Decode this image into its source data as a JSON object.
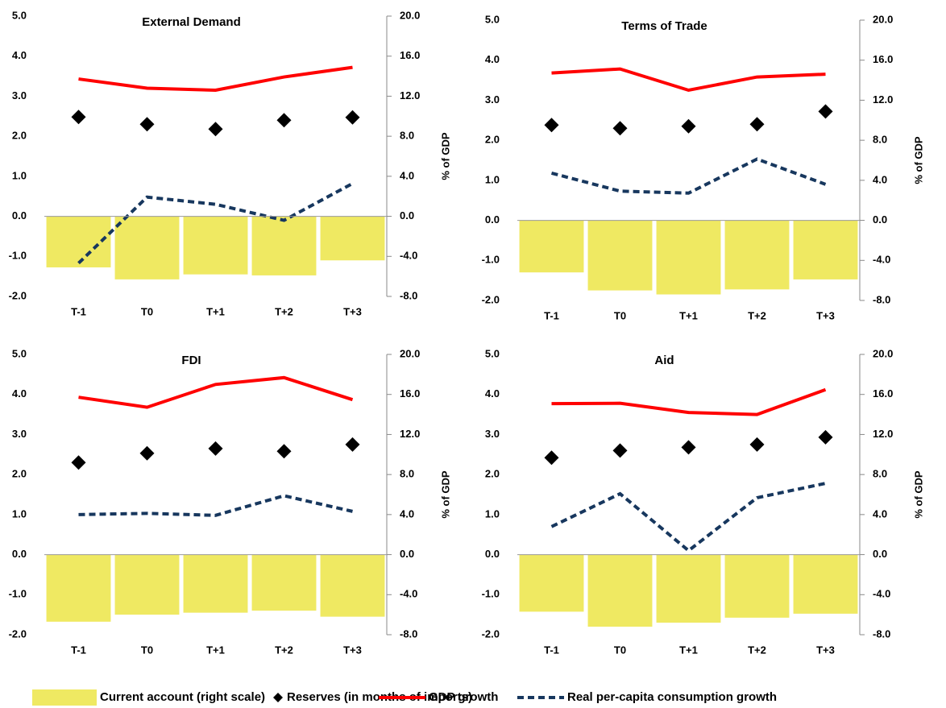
{
  "chart_data": [
    {
      "type": "combo",
      "title": "External Demand",
      "y2label": "% of GDP",
      "categories": [
        "T-1",
        "T0",
        "T+1",
        "T+2",
        "T+3"
      ],
      "series": [
        {
          "name": "Current account (right scale)",
          "type": "bar",
          "axis": "y2",
          "color": "#efe962",
          "values": [
            -5.1,
            -6.3,
            -5.8,
            -5.9,
            -4.4
          ]
        },
        {
          "name": "Reserves (in months of imports)",
          "type": "scatter",
          "color": "#000000",
          "values": [
            2.48,
            2.3,
            2.18,
            2.4,
            2.47
          ]
        },
        {
          "name": "GDP growth",
          "type": "line",
          "linestyle": "solid",
          "color": "#ff0000",
          "values": [
            3.43,
            3.2,
            3.15,
            3.48,
            3.72
          ]
        },
        {
          "name": "Real per-capita consumption growth",
          "type": "line",
          "linestyle": "dashed",
          "color": "#17375e",
          "values": [
            -1.17,
            0.48,
            0.3,
            -0.1,
            0.82
          ]
        }
      ],
      "ylim": [
        -2,
        5
      ],
      "yticks": [
        {
          "value": -2,
          "label": "-2.0"
        },
        {
          "value": -1,
          "label": "-1.0"
        },
        {
          "value": 0,
          "label": "0.0"
        },
        {
          "value": 1,
          "label": "1.0"
        },
        {
          "value": 2,
          "label": "2.0"
        },
        {
          "value": 3,
          "label": "3.0"
        },
        {
          "value": 4,
          "label": "4.0"
        },
        {
          "value": 5,
          "label": "5.0"
        }
      ],
      "y2lim": [
        -8,
        20
      ],
      "y2ticks": [
        {
          "value": -8,
          "label": "-8.0"
        },
        {
          "value": -4,
          "label": "-4.0"
        },
        {
          "value": 0,
          "label": "0.0"
        },
        {
          "value": 4,
          "label": "4.0"
        },
        {
          "value": 8,
          "label": "8.0"
        },
        {
          "value": 12,
          "label": "12.0"
        },
        {
          "value": 16,
          "label": "16.0"
        },
        {
          "value": 20,
          "label": "20.0"
        }
      ]
    },
    {
      "type": "combo",
      "title": "Terms of Trade",
      "y2label": "% of GDP",
      "categories": [
        "T-1",
        "T0",
        "T+1",
        "T+2",
        "T+3"
      ],
      "series": [
        {
          "name": "Current account (right scale)",
          "type": "bar",
          "axis": "y2",
          "color": "#efe962",
          "values": [
            -5.2,
            -7.0,
            -7.4,
            -6.9,
            -5.9
          ]
        },
        {
          "name": "Reserves (in months of imports)",
          "type": "scatter",
          "color": "#000000",
          "values": [
            2.38,
            2.3,
            2.35,
            2.4,
            2.72
          ]
        },
        {
          "name": "GDP growth",
          "type": "line",
          "linestyle": "solid",
          "color": "#ff0000",
          "values": [
            3.68,
            3.78,
            3.25,
            3.58,
            3.65
          ]
        },
        {
          "name": "Real per-capita consumption growth",
          "type": "line",
          "linestyle": "dashed",
          "color": "#17375e",
          "values": [
            1.18,
            0.73,
            0.68,
            1.53,
            0.9
          ]
        }
      ],
      "ylim": [
        -2,
        5
      ],
      "yticks": [
        {
          "value": -2,
          "label": "-2.0"
        },
        {
          "value": -1,
          "label": "-1.0"
        },
        {
          "value": 0,
          "label": "0.0"
        },
        {
          "value": 1,
          "label": "1.0"
        },
        {
          "value": 2,
          "label": "2.0"
        },
        {
          "value": 3,
          "label": "3.0"
        },
        {
          "value": 4,
          "label": "4.0"
        },
        {
          "value": 5,
          "label": "5.0"
        }
      ],
      "y2lim": [
        -8,
        20
      ],
      "y2ticks": [
        {
          "value": -8,
          "label": "-8.0"
        },
        {
          "value": -4,
          "label": "-4.0"
        },
        {
          "value": 0,
          "label": "0.0"
        },
        {
          "value": 4,
          "label": "4.0"
        },
        {
          "value": 8,
          "label": "8.0"
        },
        {
          "value": 12,
          "label": "12.0"
        },
        {
          "value": 16,
          "label": "16.0"
        },
        {
          "value": 20,
          "label": "20.0"
        }
      ]
    },
    {
      "type": "combo",
      "title": "FDI",
      "y2label": "% of GDP",
      "categories": [
        "T-1",
        "T0",
        "T+1",
        "T+2",
        "T+3"
      ],
      "series": [
        {
          "name": "Current account (right scale)",
          "type": "bar",
          "axis": "y2",
          "color": "#efe962",
          "values": [
            -6.7,
            -6.0,
            -5.8,
            -5.6,
            -6.2
          ]
        },
        {
          "name": "Reserves (in months of imports)",
          "type": "scatter",
          "color": "#000000",
          "values": [
            2.3,
            2.53,
            2.65,
            2.58,
            2.75
          ]
        },
        {
          "name": "GDP growth",
          "type": "line",
          "linestyle": "solid",
          "color": "#ff0000",
          "values": [
            3.93,
            3.68,
            4.25,
            4.42,
            3.87
          ]
        },
        {
          "name": "Real per-capita consumption growth",
          "type": "line",
          "linestyle": "dashed",
          "color": "#17375e",
          "values": [
            1.0,
            1.03,
            0.98,
            1.47,
            1.08
          ]
        }
      ],
      "ylim": [
        -2,
        5
      ],
      "yticks": [
        {
          "value": -2,
          "label": "-2.0"
        },
        {
          "value": -1,
          "label": "-1.0"
        },
        {
          "value": 0,
          "label": "0.0"
        },
        {
          "value": 1,
          "label": "1.0"
        },
        {
          "value": 2,
          "label": "2.0"
        },
        {
          "value": 3,
          "label": "3.0"
        },
        {
          "value": 4,
          "label": "4.0"
        },
        {
          "value": 5,
          "label": "5.0"
        }
      ],
      "y2lim": [
        -8,
        20
      ],
      "y2ticks": [
        {
          "value": -8,
          "label": "-8.0"
        },
        {
          "value": -4,
          "label": "-4.0"
        },
        {
          "value": 0,
          "label": "0.0"
        },
        {
          "value": 4,
          "label": "4.0"
        },
        {
          "value": 8,
          "label": "8.0"
        },
        {
          "value": 12,
          "label": "12.0"
        },
        {
          "value": 16,
          "label": "16.0"
        },
        {
          "value": 20,
          "label": "20.0"
        }
      ]
    },
    {
      "type": "combo",
      "title": "Aid",
      "y2label": "% of GDP",
      "categories": [
        "T-1",
        "T0",
        "T+1",
        "T+2",
        "T+3"
      ],
      "series": [
        {
          "name": "Current account (right scale)",
          "type": "bar",
          "axis": "y2",
          "color": "#efe962",
          "values": [
            -5.7,
            -7.2,
            -6.8,
            -6.3,
            -5.9
          ]
        },
        {
          "name": "Reserves (in months of imports)",
          "type": "scatter",
          "color": "#000000",
          "values": [
            2.42,
            2.6,
            2.68,
            2.75,
            2.93
          ]
        },
        {
          "name": "GDP growth",
          "type": "line",
          "linestyle": "solid",
          "color": "#ff0000",
          "values": [
            3.77,
            3.78,
            3.55,
            3.5,
            4.12
          ]
        },
        {
          "name": "Real per-capita consumption growth",
          "type": "line",
          "linestyle": "dashed",
          "color": "#17375e",
          "values": [
            0.7,
            1.52,
            0.1,
            1.42,
            1.78
          ]
        }
      ],
      "ylim": [
        -2,
        5
      ],
      "yticks": [
        {
          "value": -2,
          "label": "-2.0"
        },
        {
          "value": -1,
          "label": "-1.0"
        },
        {
          "value": 0,
          "label": "0.0"
        },
        {
          "value": 1,
          "label": "1.0"
        },
        {
          "value": 2,
          "label": "2.0"
        },
        {
          "value": 3,
          "label": "3.0"
        },
        {
          "value": 4,
          "label": "4.0"
        },
        {
          "value": 5,
          "label": "5.0"
        }
      ],
      "y2lim": [
        -8,
        20
      ],
      "y2ticks": [
        {
          "value": -8,
          "label": "-8.0"
        },
        {
          "value": -4,
          "label": "-4.0"
        },
        {
          "value": 0,
          "label": "0.0"
        },
        {
          "value": 4,
          "label": "4.0"
        },
        {
          "value": 8,
          "label": "8.0"
        },
        {
          "value": 12,
          "label": "12.0"
        },
        {
          "value": 16,
          "label": "16.0"
        },
        {
          "value": 20,
          "label": "20.0"
        }
      ]
    }
  ]
}
